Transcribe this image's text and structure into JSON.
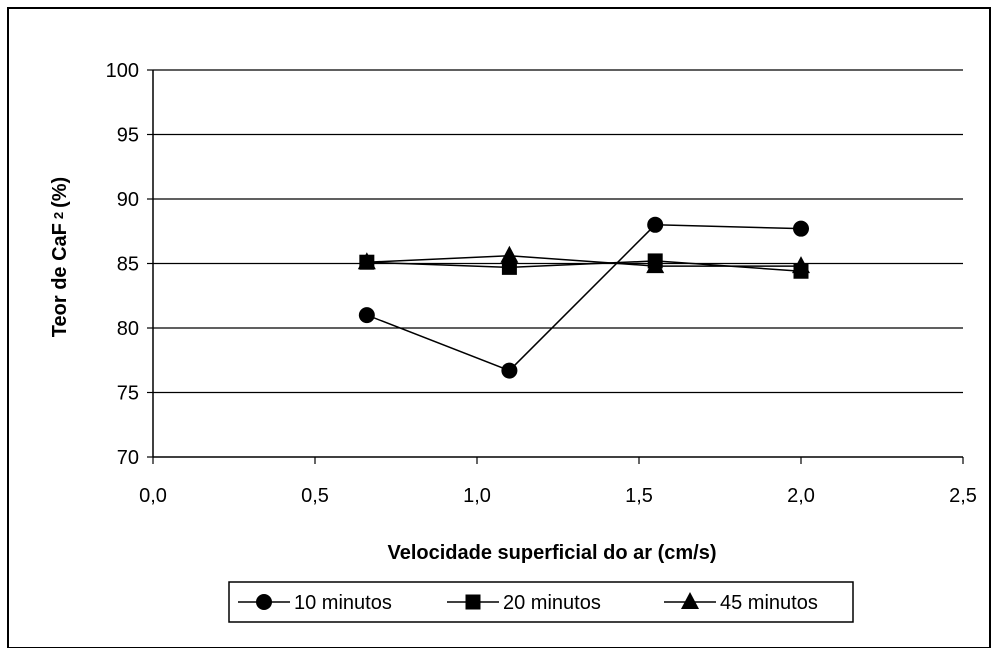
{
  "chart_data": {
    "type": "line",
    "xlabel": "Velocidade superficial do ar (cm/s)",
    "ylabel_main": "Teor de CaF",
    "ylabel_sub": "2",
    "ylabel_unit": "(%)",
    "xlim": [
      0,
      2.5
    ],
    "ylim": [
      70,
      100
    ],
    "xticks": [
      0,
      0.5,
      1.0,
      1.5,
      2.0,
      2.5
    ],
    "xtick_labels": [
      "0,0",
      "0,5",
      "1,0",
      "1,5",
      "2,0",
      "2,5"
    ],
    "yticks": [
      70,
      75,
      80,
      85,
      90,
      95,
      100
    ],
    "ytick_labels": [
      "70",
      "75",
      "80",
      "85",
      "90",
      "95",
      "100"
    ],
    "grid": "horizontal",
    "legend_position": "bottom",
    "series": [
      {
        "name": "10 minutos",
        "marker": "circle",
        "x": [
          0.66,
          1.1,
          1.55,
          2.0
        ],
        "y": [
          81.0,
          76.7,
          88.0,
          87.7
        ]
      },
      {
        "name": "20 minutos",
        "marker": "square",
        "x": [
          0.66,
          1.1,
          1.55,
          2.0
        ],
        "y": [
          85.1,
          84.7,
          85.2,
          84.4
        ]
      },
      {
        "name": "45 minutos",
        "marker": "triangle",
        "x": [
          0.66,
          1.1,
          1.55,
          2.0
        ],
        "y": [
          85.1,
          85.6,
          84.8,
          84.8
        ]
      }
    ]
  }
}
